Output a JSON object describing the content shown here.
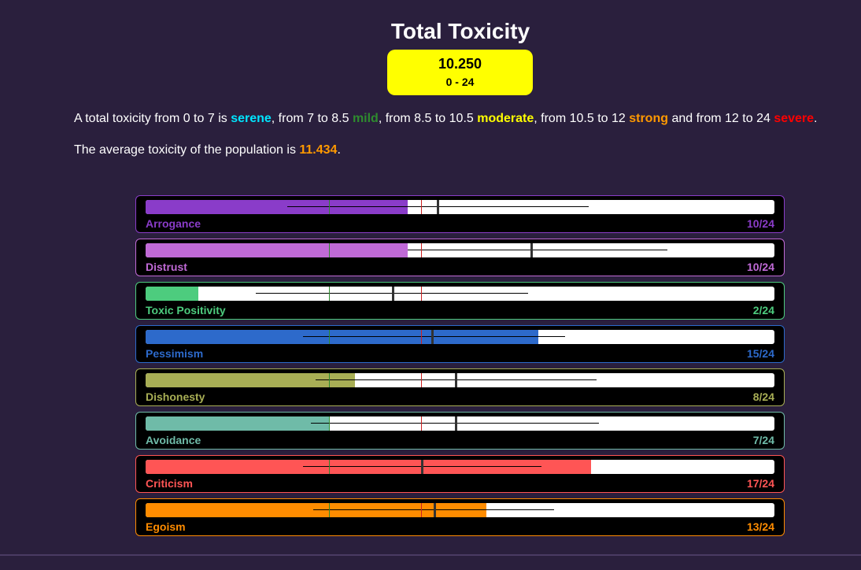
{
  "header": {
    "title": "Total Toxicity",
    "score": "10.250",
    "range": "0 - 24"
  },
  "legend": {
    "p1": "A total toxicity from 0 to 7 is ",
    "serene": "serene",
    "p2": ", from 7 to 8.5 ",
    "mild": "mild",
    "p3": ", from 8.5 to 10.5 ",
    "moderate": "moderate",
    "p4": ", from 10.5 to 12 ",
    "strong": "strong",
    "p5": " and from 12 to 24 ",
    "severe": "severe",
    "p6": "."
  },
  "average": {
    "prefix": "The average toxicity of the population is ",
    "value": "11.434",
    "suffix": "."
  },
  "colors": {
    "serene": "#00e5ff",
    "mild": "#2e8b2e",
    "moderate": "#ffff00",
    "strong": "#ff9900",
    "severe": "#ff0000",
    "average": "#ff9900"
  },
  "thresholds": {
    "green": 7,
    "red": 10.5,
    "max": 24
  },
  "bars": [
    {
      "name": "arrogance",
      "label": "Arrogance",
      "score_text": "10/24",
      "value": 10,
      "mean": 11.1,
      "range_low": 5.4,
      "range_high": 16.9,
      "color": "#8a3cc9"
    },
    {
      "name": "distrust",
      "label": "Distrust",
      "score_text": "10/24",
      "value": 10,
      "mean": 14.7,
      "range_low": 10,
      "range_high": 19.9,
      "color": "#c06ad6"
    },
    {
      "name": "toxic-positivity",
      "label": "Toxic Positivity",
      "score_text": "2/24",
      "value": 2,
      "mean": 9.4,
      "range_low": 4.2,
      "range_high": 14.6,
      "color": "#4dcc7e"
    },
    {
      "name": "pessimism",
      "label": "Pessimism",
      "score_text": "15/24",
      "value": 15,
      "mean": 10.9,
      "range_low": 6,
      "range_high": 16,
      "color": "#2d6acb"
    },
    {
      "name": "dishonesty",
      "label": "Dishonesty",
      "score_text": "8/24",
      "value": 8,
      "mean": 11.8,
      "range_low": 6.5,
      "range_high": 17.2,
      "color": "#a8ae55"
    },
    {
      "name": "avoidance",
      "label": "Avoidance",
      "score_text": "7/24",
      "value": 7,
      "mean": 11.8,
      "range_low": 6.3,
      "range_high": 17.3,
      "color": "#6fbba8"
    },
    {
      "name": "criticism",
      "label": "Criticism",
      "score_text": "17/24",
      "value": 17,
      "mean": 10.5,
      "range_low": 6,
      "range_high": 15.1,
      "color": "#ff5555"
    },
    {
      "name": "egoism",
      "label": "Egoism",
      "score_text": "13/24",
      "value": 13,
      "mean": 11,
      "range_low": 6.4,
      "range_high": 15.6,
      "color": "#ff8c00"
    }
  ]
}
